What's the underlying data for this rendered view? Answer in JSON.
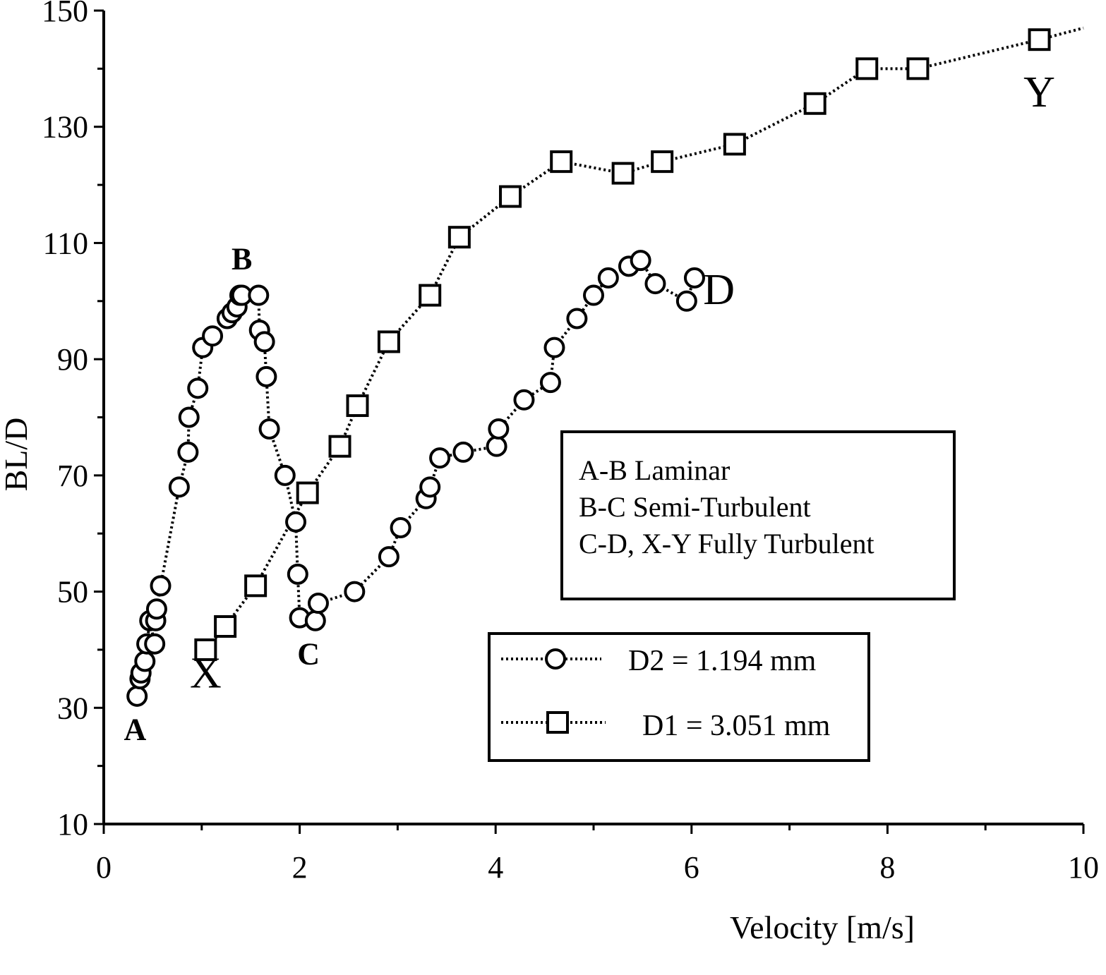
{
  "chart_data": {
    "type": "scatter",
    "xlabel": "Velocity [m/s]",
    "ylabel": "BL/D",
    "xlim": [
      0,
      10
    ],
    "ylim": [
      10,
      150
    ],
    "x_ticks": [
      "0",
      "2",
      "4",
      "6",
      "8",
      "10"
    ],
    "y_ticks": [
      "10",
      "30",
      "50",
      "70",
      "90",
      "110",
      "130",
      "150"
    ],
    "grid": false,
    "series": [
      {
        "name": "D2 = 1.194 mm",
        "marker": "circle",
        "line": "dotted",
        "points": [
          [
            0.34,
            32
          ],
          [
            0.37,
            35
          ],
          [
            0.38,
            36
          ],
          [
            0.42,
            38
          ],
          [
            0.44,
            41
          ],
          [
            0.47,
            45
          ],
          [
            0.52,
            41
          ],
          [
            0.53,
            45
          ],
          [
            0.54,
            47
          ],
          [
            0.58,
            51
          ],
          [
            0.77,
            68
          ],
          [
            0.86,
            74
          ],
          [
            0.87,
            80
          ],
          [
            0.96,
            85
          ],
          [
            1.01,
            92
          ],
          [
            1.11,
            94
          ],
          [
            1.26,
            97
          ],
          [
            1.31,
            98
          ],
          [
            1.36,
            99
          ],
          [
            1.39,
            101
          ],
          [
            1.41,
            101
          ],
          [
            1.58,
            101
          ],
          [
            1.59,
            95
          ],
          [
            1.64,
            93
          ],
          [
            1.66,
            87
          ],
          [
            1.69,
            78
          ],
          [
            1.85,
            70
          ],
          [
            1.96,
            62
          ],
          [
            1.98,
            53
          ],
          [
            2.0,
            45.5
          ],
          [
            2.16,
            45
          ],
          [
            2.19,
            48
          ],
          [
            2.56,
            50
          ],
          [
            2.91,
            56
          ],
          [
            3.03,
            61
          ],
          [
            3.29,
            66
          ],
          [
            3.33,
            68
          ],
          [
            3.43,
            73
          ],
          [
            3.67,
            74
          ],
          [
            4.01,
            75
          ],
          [
            4.03,
            78
          ],
          [
            4.29,
            83
          ],
          [
            4.56,
            86
          ],
          [
            4.6,
            92
          ],
          [
            4.83,
            97
          ],
          [
            5.0,
            101
          ],
          [
            5.15,
            104
          ],
          [
            5.36,
            106
          ],
          [
            5.48,
            107
          ],
          [
            5.63,
            103
          ],
          [
            5.95,
            100
          ],
          [
            6.03,
            104
          ]
        ]
      },
      {
        "name": "D1 = 3.051 mm",
        "marker": "square",
        "line": "dotted",
        "points": [
          [
            1.04,
            40
          ],
          [
            1.24,
            44
          ],
          [
            1.55,
            51
          ],
          [
            2.08,
            67
          ],
          [
            2.41,
            75
          ],
          [
            2.59,
            82
          ],
          [
            2.91,
            93
          ],
          [
            3.33,
            101
          ],
          [
            3.63,
            111
          ],
          [
            4.15,
            118
          ],
          [
            4.67,
            124
          ],
          [
            5.3,
            122
          ],
          [
            5.7,
            124
          ],
          [
            6.44,
            127
          ],
          [
            7.26,
            134
          ],
          [
            7.79,
            140
          ],
          [
            8.31,
            140
          ],
          [
            9.55,
            145
          ],
          [
            10.0,
            147
          ]
        ]
      }
    ],
    "point_labels": [
      {
        "text": "A",
        "x": 0.32,
        "y": 24.5,
        "style": "bold"
      },
      {
        "text": "B",
        "x": 1.41,
        "y": 105.5,
        "style": "bold"
      },
      {
        "text": "C",
        "x": 2.09,
        "y": 37.5,
        "style": "bold"
      },
      {
        "text": "D",
        "x": 6.28,
        "y": 99.5,
        "style": "big"
      },
      {
        "text": "X",
        "x": 1.04,
        "y": 33.5,
        "style": "big"
      },
      {
        "text": "Y",
        "x": 9.55,
        "y": 133.5,
        "style": "big"
      }
    ],
    "annotation_box": {
      "lines": [
        "A-B Laminar",
        "B-C Semi-Turbulent",
        "C-D, X-Y Fully Turbulent"
      ]
    },
    "legend": {
      "position": "bottom-center",
      "entries": [
        "D2 = 1.194 mm",
        "D1 = 3.051 mm"
      ]
    }
  }
}
